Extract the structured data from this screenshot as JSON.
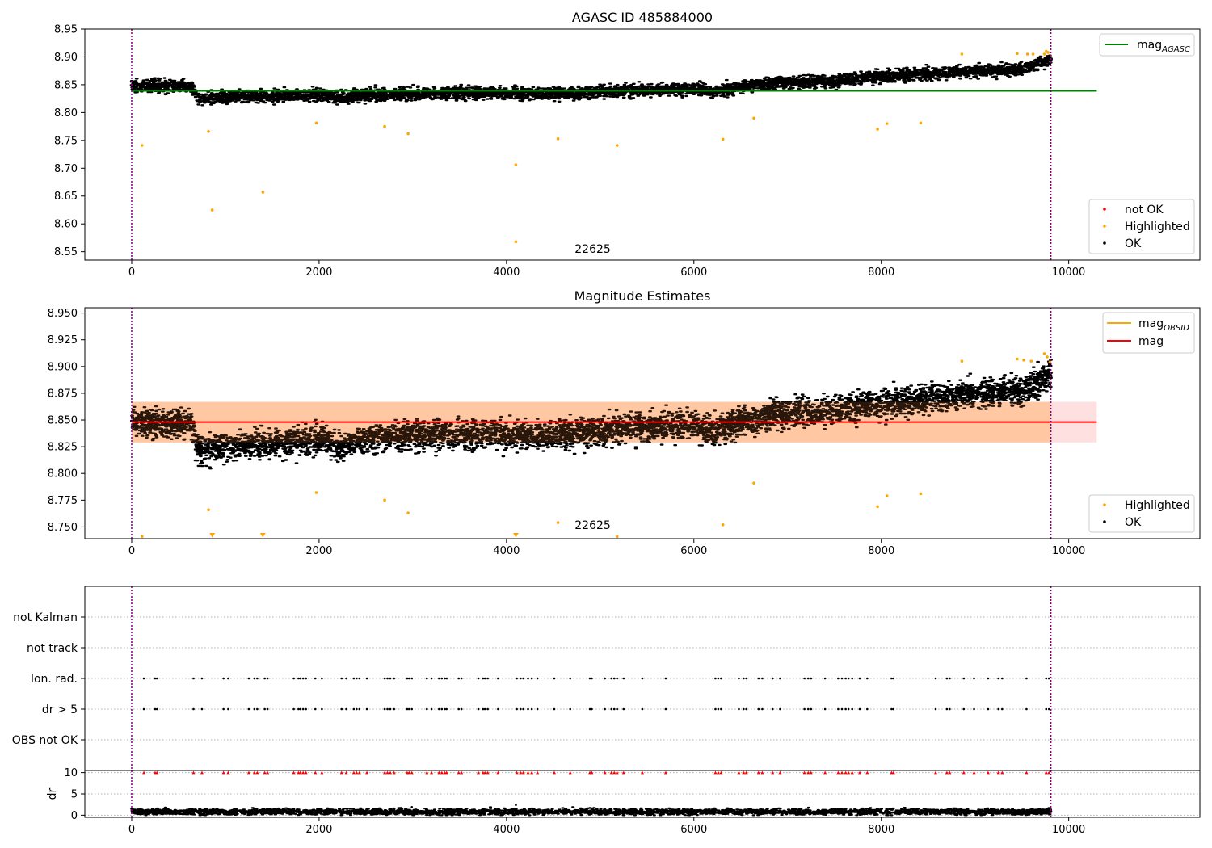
{
  "chart_data": [
    {
      "id": "agasc",
      "type": "scatter",
      "title": "AGASC ID 485884000",
      "xlim": [
        -500,
        11400
      ],
      "ylim": [
        8.535,
        8.95
      ],
      "xticks": [
        0,
        2000,
        4000,
        6000,
        8000,
        10000
      ],
      "xtick_labels": [
        "0",
        "2000",
        "4000",
        "6000",
        "8000",
        "10000"
      ],
      "yticks": [
        8.55,
        8.6,
        8.65,
        8.7,
        8.75,
        8.8,
        8.85,
        8.9,
        8.95
      ],
      "ytick_labels": [
        "8.55",
        "8.60",
        "8.65",
        "8.70",
        "8.75",
        "8.80",
        "8.85",
        "8.90",
        "8.95"
      ],
      "obs_boundaries": [
        0,
        9810
      ],
      "obsid_label": {
        "text": "22625",
        "x": 4920,
        "y": 8.548
      },
      "mag_line": {
        "value": 8.839,
        "x_range": [
          0,
          10300
        ],
        "color": "#008000"
      },
      "ok_trend": [
        {
          "x": 0,
          "y": 8.848
        },
        {
          "x": 650,
          "y": 8.847
        },
        {
          "x": 700,
          "y": 8.826
        },
        {
          "x": 2000,
          "y": 8.832
        },
        {
          "x": 2200,
          "y": 8.826
        },
        {
          "x": 2600,
          "y": 8.832
        },
        {
          "x": 3800,
          "y": 8.836
        },
        {
          "x": 4200,
          "y": 8.833
        },
        {
          "x": 5000,
          "y": 8.838
        },
        {
          "x": 6000,
          "y": 8.843
        },
        {
          "x": 6200,
          "y": 8.838
        },
        {
          "x": 6800,
          "y": 8.853
        },
        {
          "x": 7500,
          "y": 8.858
        },
        {
          "x": 8000,
          "y": 8.865
        },
        {
          "x": 9000,
          "y": 8.874
        },
        {
          "x": 9500,
          "y": 8.878
        },
        {
          "x": 9800,
          "y": 8.895
        }
      ],
      "ok_spread": 0.009,
      "highlighted_points": [
        {
          "x": 110,
          "y": 8.741
        },
        {
          "x": 820,
          "y": 8.766
        },
        {
          "x": 860,
          "y": 8.625
        },
        {
          "x": 1400,
          "y": 8.657
        },
        {
          "x": 1970,
          "y": 8.781
        },
        {
          "x": 2700,
          "y": 8.775
        },
        {
          "x": 2950,
          "y": 8.762
        },
        {
          "x": 4100,
          "y": 8.706
        },
        {
          "x": 4100,
          "y": 8.568
        },
        {
          "x": 4550,
          "y": 8.753
        },
        {
          "x": 5180,
          "y": 8.741
        },
        {
          "x": 6310,
          "y": 8.752
        },
        {
          "x": 6640,
          "y": 8.79
        },
        {
          "x": 7960,
          "y": 8.77
        },
        {
          "x": 8060,
          "y": 8.78
        },
        {
          "x": 8420,
          "y": 8.781
        },
        {
          "x": 8860,
          "y": 8.905
        },
        {
          "x": 9450,
          "y": 8.906
        },
        {
          "x": 9560,
          "y": 8.905
        },
        {
          "x": 9620,
          "y": 8.905
        },
        {
          "x": 9740,
          "y": 8.905
        },
        {
          "x": 9760,
          "y": 8.91
        },
        {
          "x": 9780,
          "y": 8.908
        },
        {
          "x": 9800,
          "y": 8.902
        }
      ],
      "legend_lines": [
        {
          "label": "mag",
          "sub": "AGASC",
          "color": "#008000"
        }
      ],
      "legend_points": [
        {
          "label": "not OK",
          "color": "#ff0000"
        },
        {
          "label": "Highlighted",
          "color": "#ffa500"
        },
        {
          "label": "OK",
          "color": "#000000"
        }
      ]
    },
    {
      "id": "estimates",
      "type": "scatter",
      "title": "Magnitude Estimates",
      "xlim": [
        -500,
        11400
      ],
      "ylim": [
        8.739,
        8.955
      ],
      "xticks": [
        0,
        2000,
        4000,
        6000,
        8000,
        10000
      ],
      "xtick_labels": [
        "0",
        "2000",
        "4000",
        "6000",
        "8000",
        "10000"
      ],
      "yticks": [
        8.75,
        8.775,
        8.8,
        8.825,
        8.85,
        8.875,
        8.9,
        8.925,
        8.95
      ],
      "ytick_labels": [
        "8.750",
        "8.775",
        "8.800",
        "8.825",
        "8.850",
        "8.875",
        "8.900",
        "8.925",
        "8.950"
      ],
      "obs_boundaries": [
        0,
        9810
      ],
      "obsid_label": {
        "text": "22625",
        "x": 4920,
        "y": 8.748
      },
      "mag_band": {
        "center": 8.848,
        "low": 8.829,
        "high": 8.867,
        "x_range": [
          0,
          10300
        ]
      },
      "obsid_band": {
        "low": 8.829,
        "high": 8.867,
        "x_range": [
          0,
          9810
        ]
      },
      "mag_line_color": "#ff0000",
      "ok_trend": [
        {
          "x": 0,
          "y": 8.848
        },
        {
          "x": 650,
          "y": 8.847
        },
        {
          "x": 700,
          "y": 8.822
        },
        {
          "x": 2000,
          "y": 8.832
        },
        {
          "x": 2200,
          "y": 8.825
        },
        {
          "x": 2600,
          "y": 8.833
        },
        {
          "x": 3800,
          "y": 8.838
        },
        {
          "x": 4200,
          "y": 8.834
        },
        {
          "x": 5000,
          "y": 8.84
        },
        {
          "x": 6000,
          "y": 8.846
        },
        {
          "x": 6200,
          "y": 8.84
        },
        {
          "x": 6800,
          "y": 8.855
        },
        {
          "x": 7500,
          "y": 8.86
        },
        {
          "x": 8000,
          "y": 8.866
        },
        {
          "x": 9000,
          "y": 8.874
        },
        {
          "x": 9500,
          "y": 8.878
        },
        {
          "x": 9800,
          "y": 8.893
        }
      ],
      "ok_spread": 0.011,
      "highlighted_points": [
        {
          "x": 820,
          "y": 8.766
        },
        {
          "x": 1970,
          "y": 8.782
        },
        {
          "x": 2700,
          "y": 8.775
        },
        {
          "x": 2950,
          "y": 8.763
        },
        {
          "x": 4550,
          "y": 8.754
        },
        {
          "x": 6310,
          "y": 8.752
        },
        {
          "x": 6640,
          "y": 8.791
        },
        {
          "x": 7960,
          "y": 8.769
        },
        {
          "x": 8060,
          "y": 8.779
        },
        {
          "x": 8420,
          "y": 8.781
        },
        {
          "x": 8860,
          "y": 8.905
        },
        {
          "x": 9450,
          "y": 8.907
        },
        {
          "x": 9520,
          "y": 8.906
        },
        {
          "x": 9600,
          "y": 8.905
        },
        {
          "x": 9740,
          "y": 8.912
        },
        {
          "x": 9770,
          "y": 8.909
        },
        {
          "x": 9800,
          "y": 8.904
        },
        {
          "x": 110,
          "y": 8.741
        },
        {
          "x": 5180,
          "y": 8.741
        }
      ],
      "offscale_markers": [
        860,
        1400,
        4100
      ],
      "legend_lines": [
        {
          "label": "mag",
          "sub": "OBSID",
          "color": "#ffa500"
        },
        {
          "label": "mag",
          "sub": "",
          "color": "#ff0000"
        }
      ],
      "legend_points": [
        {
          "label": "Highlighted",
          "color": "#ffa500"
        },
        {
          "label": "OK",
          "color": "#000000"
        }
      ]
    },
    {
      "id": "flags",
      "type": "scatter",
      "xlim": [
        -500,
        11400
      ],
      "categories": [
        "not Kalman",
        "not track",
        "Ion. rad.",
        "dr > 5",
        "OBS not OK"
      ],
      "obs_boundaries": [
        0,
        9810
      ],
      "flag_times": [
        130,
        250,
        270,
        660,
        750,
        980,
        1030,
        1250,
        1310,
        1340,
        1420,
        1450,
        1730,
        1780,
        1800,
        1830,
        1860,
        1960,
        2030,
        2240,
        2290,
        2370,
        2400,
        2430,
        2510,
        2700,
        2730,
        2760,
        2800,
        2940,
        2960,
        2990,
        3150,
        3200,
        3280,
        3310,
        3340,
        3360,
        3490,
        3520,
        3700,
        3750,
        3770,
        3800,
        3910,
        4110,
        4150,
        4180,
        4230,
        4270,
        4330,
        4510,
        4680,
        4890,
        4910,
        5050,
        5120,
        5150,
        5180,
        5250,
        5450,
        5700,
        6230,
        6260,
        6290,
        6480,
        6530,
        6560,
        6690,
        6730,
        6840,
        6920,
        7180,
        7220,
        7250,
        7400,
        7540,
        7580,
        7620,
        7650,
        7690,
        7770,
        7850,
        8110,
        8130,
        8580,
        8700,
        8730,
        8880,
        8990,
        9140,
        9250,
        9290,
        9550,
        9760,
        9790
      ]
    },
    {
      "id": "dr",
      "type": "scatter",
      "ylabel": "dr",
      "xlim": [
        -500,
        11400
      ],
      "ylim": [
        -0.5,
        10.5
      ],
      "xticks": [
        0,
        2000,
        4000,
        6000,
        8000,
        10000
      ],
      "xtick_labels": [
        "0",
        "2000",
        "4000",
        "6000",
        "8000",
        "10000"
      ],
      "yticks": [
        0,
        5,
        10
      ],
      "ytick_labels": [
        "0",
        "5",
        "10"
      ],
      "obs_boundaries": [
        0,
        9810
      ],
      "dr_typical": 0.8,
      "dr_outliers": [
        {
          "x": 4100,
          "y": 2.4
        },
        {
          "x": 2990,
          "y": 1.9
        }
      ],
      "clipped_marker_value": 10
    }
  ]
}
